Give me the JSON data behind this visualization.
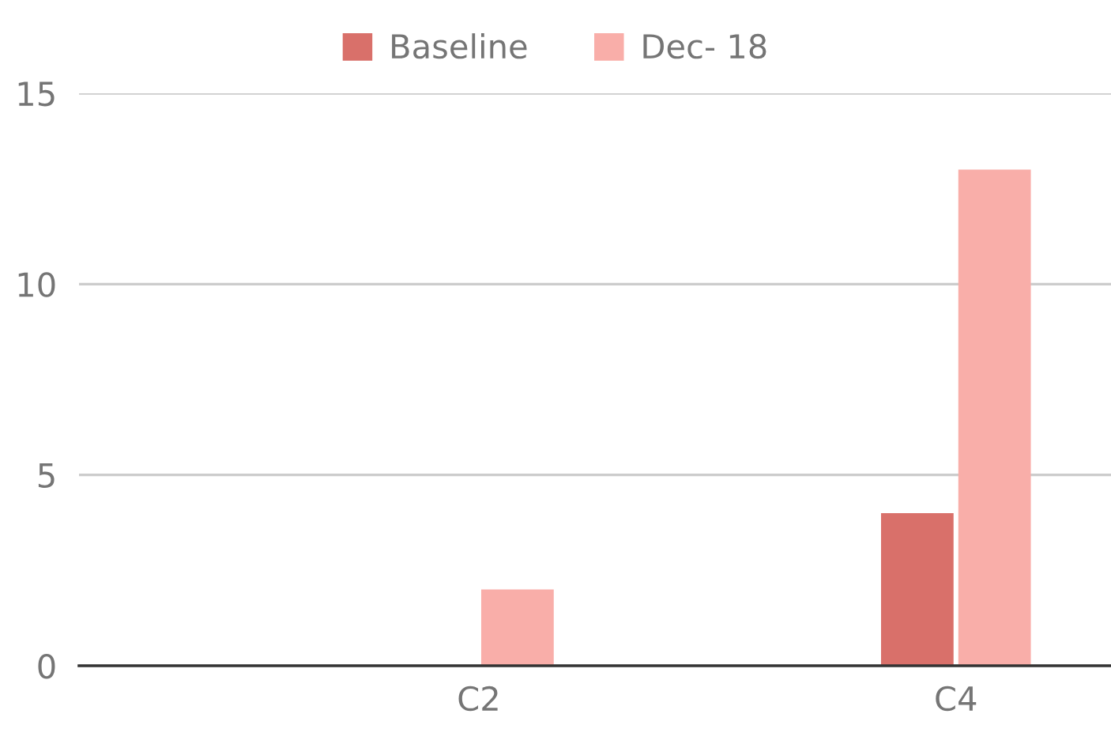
{
  "chart_data": {
    "type": "bar",
    "categories": [
      "C2",
      "C4"
    ],
    "series": [
      {
        "name": "Baseline",
        "color": "#d9706a",
        "values": [
          null,
          4
        ]
      },
      {
        "name": "Dec- 18",
        "color": "#f9aea9",
        "values": [
          2,
          13
        ]
      }
    ],
    "ylim": [
      0,
      15
    ],
    "yticks": [
      0,
      5,
      10,
      15
    ],
    "grid": "y",
    "legend": "top"
  }
}
